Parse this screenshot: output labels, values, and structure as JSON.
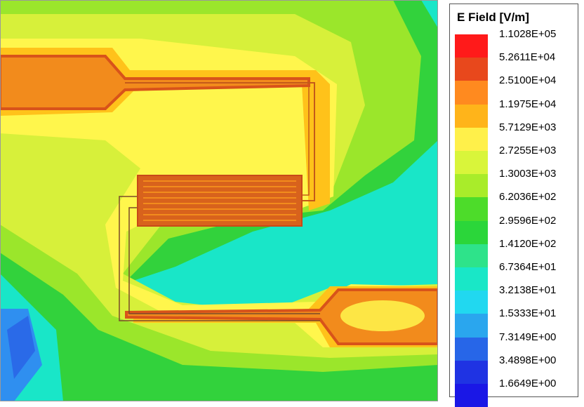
{
  "legend": {
    "title": "E Field [V/m]",
    "ticks": [
      "1.1028E+05",
      "5.2611E+04",
      "2.5100E+04",
      "1.1975E+04",
      "5.7129E+03",
      "2.7255E+03",
      "1.3003E+03",
      "6.2036E+02",
      "2.9596E+02",
      "1.4120E+02",
      "6.7364E+01",
      "3.2138E+01",
      "1.5333E+01",
      "7.3149E+00",
      "3.4898E+00",
      "1.6649E+00"
    ],
    "colors": [
      "#ff1a1a",
      "#e8481c",
      "#ff8a1f",
      "#ffb41a",
      "#fff04a",
      "#d9f53a",
      "#a9ec2a",
      "#4ddc2a",
      "#2bd63a",
      "#2ee38a",
      "#19e7c7",
      "#21d8f0",
      "#2aa6ee",
      "#2766e8",
      "#1f33e3",
      "#1a17e6"
    ]
  },
  "field_colors": {
    "bg_far": "#19e6c8",
    "green": "#32d23c",
    "light_green": "#9be62b",
    "yellow_green": "#d7f03a",
    "yellow": "#fff64c",
    "gold": "#ffc21a",
    "orange": "#f28b1c",
    "trace": "#d8531a",
    "blue": "#2f8ff0",
    "dark_blue": "#2a6ae8"
  }
}
